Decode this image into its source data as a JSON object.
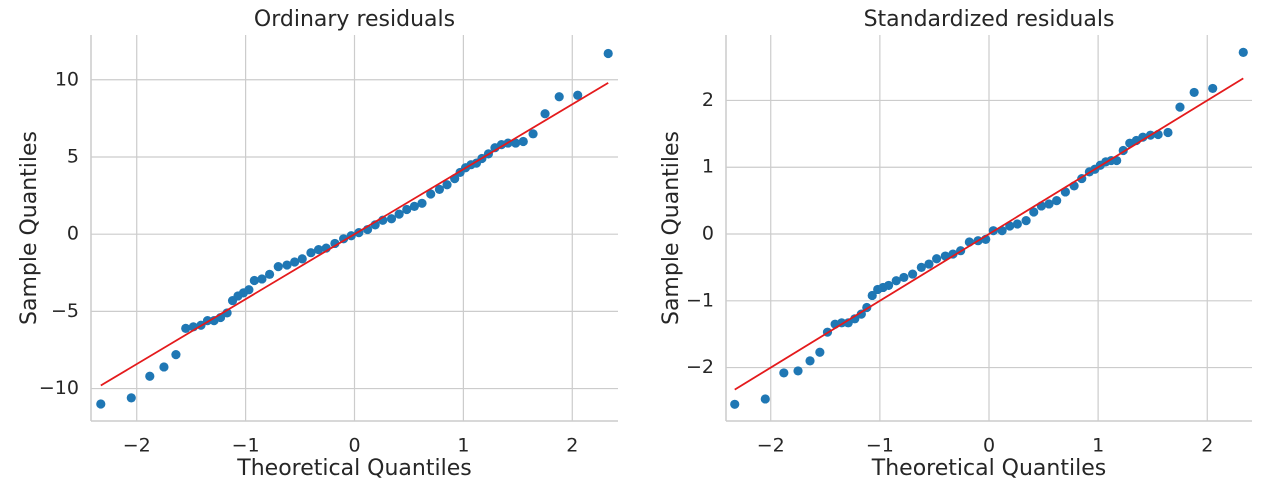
{
  "chart_data": [
    {
      "type": "scatter",
      "title": "Ordinary residuals",
      "x_label": "Theoretical Quantiles",
      "y_label": "Sample Quantiles",
      "color": "#1f77b4",
      "grid": true,
      "xlim": [
        -2.42,
        2.42
      ],
      "ylim": [
        -12.1,
        12.9
      ],
      "xticks": [
        {
          "value": -2,
          "label": "−2"
        },
        {
          "value": -1,
          "label": "−1"
        },
        0,
        1,
        2
      ],
      "yticks": [
        {
          "value": -10,
          "label": "−10"
        },
        {
          "value": -5,
          "label": "−5"
        },
        0,
        5,
        10
      ],
      "x": [
        -2.33,
        -2.05,
        -1.88,
        -1.75,
        -1.64,
        -1.55,
        -1.48,
        -1.41,
        -1.35,
        -1.29,
        -1.23,
        -1.17,
        -1.12,
        -1.07,
        -1.02,
        -0.97,
        -0.92,
        -0.85,
        -0.78,
        -0.7,
        -0.62,
        -0.55,
        -0.48,
        -0.4,
        -0.33,
        -0.26,
        -0.18,
        -0.1,
        -0.03,
        0.04,
        0.12,
        0.19,
        0.26,
        0.34,
        0.41,
        0.48,
        0.55,
        0.62,
        0.7,
        0.78,
        0.85,
        0.92,
        0.97,
        1.02,
        1.07,
        1.12,
        1.17,
        1.23,
        1.29,
        1.35,
        1.41,
        1.48,
        1.55,
        1.64,
        1.75,
        1.88,
        2.05,
        2.33
      ],
      "values": [
        -11.0,
        -10.6,
        -9.2,
        -8.6,
        -7.8,
        -6.1,
        -6.0,
        -5.9,
        -5.6,
        -5.6,
        -5.4,
        -5.1,
        -4.3,
        -4.0,
        -3.8,
        -3.6,
        -3.0,
        -2.9,
        -2.6,
        -2.1,
        -2.0,
        -1.8,
        -1.6,
        -1.2,
        -1.0,
        -0.9,
        -0.6,
        -0.3,
        -0.1,
        0.1,
        0.3,
        0.6,
        0.9,
        1.0,
        1.3,
        1.6,
        1.8,
        2.0,
        2.6,
        2.9,
        3.2,
        3.6,
        4.0,
        4.3,
        4.5,
        4.6,
        4.9,
        5.2,
        5.6,
        5.8,
        5.9,
        5.9,
        6.0,
        6.5,
        7.8,
        8.9,
        9.0,
        11.7
      ],
      "line": {
        "color": "#e41a1c",
        "x": [
          -2.33,
          2.33
        ],
        "values": [
          -9.8,
          9.8
        ]
      }
    },
    {
      "type": "scatter",
      "title": "Standardized residuals",
      "x_label": "Theoretical Quantiles",
      "y_label": "Sample Quantiles",
      "color": "#1f77b4",
      "grid": true,
      "xlim": [
        -2.41,
        2.41
      ],
      "ylim": [
        -2.8,
        2.98
      ],
      "xticks": [
        {
          "value": -2,
          "label": "−2"
        },
        {
          "value": -1,
          "label": "−1"
        },
        0,
        1,
        2
      ],
      "yticks": [
        {
          "value": -2,
          "label": "−2"
        },
        {
          "value": -1,
          "label": "−1"
        },
        0,
        1,
        2
      ],
      "x": [
        -2.33,
        -2.05,
        -1.88,
        -1.75,
        -1.64,
        -1.55,
        -1.48,
        -1.41,
        -1.35,
        -1.29,
        -1.23,
        -1.17,
        -1.12,
        -1.07,
        -1.02,
        -0.97,
        -0.92,
        -0.85,
        -0.78,
        -0.7,
        -0.62,
        -0.55,
        -0.48,
        -0.4,
        -0.33,
        -0.26,
        -0.18,
        -0.1,
        -0.03,
        0.04,
        0.12,
        0.19,
        0.26,
        0.34,
        0.41,
        0.48,
        0.55,
        0.62,
        0.7,
        0.78,
        0.85,
        0.92,
        0.97,
        1.02,
        1.07,
        1.12,
        1.17,
        1.23,
        1.29,
        1.35,
        1.41,
        1.48,
        1.55,
        1.64,
        1.75,
        1.88,
        2.05,
        2.33
      ],
      "values": [
        -2.55,
        -2.47,
        -2.08,
        -2.05,
        -1.9,
        -1.77,
        -1.47,
        -1.35,
        -1.33,
        -1.33,
        -1.27,
        -1.2,
        -1.1,
        -0.92,
        -0.83,
        -0.8,
        -0.77,
        -0.7,
        -0.65,
        -0.6,
        -0.5,
        -0.45,
        -0.37,
        -0.33,
        -0.3,
        -0.25,
        -0.12,
        -0.1,
        -0.08,
        0.05,
        0.05,
        0.12,
        0.15,
        0.2,
        0.33,
        0.42,
        0.45,
        0.5,
        0.63,
        0.72,
        0.83,
        0.93,
        0.97,
        1.03,
        1.08,
        1.1,
        1.1,
        1.25,
        1.36,
        1.4,
        1.45,
        1.48,
        1.49,
        1.52,
        1.9,
        2.12,
        2.18,
        2.72
      ],
      "line": {
        "color": "#e41a1c",
        "x": [
          -2.33,
          2.33
        ],
        "values": [
          -2.33,
          2.33
        ]
      }
    }
  ]
}
